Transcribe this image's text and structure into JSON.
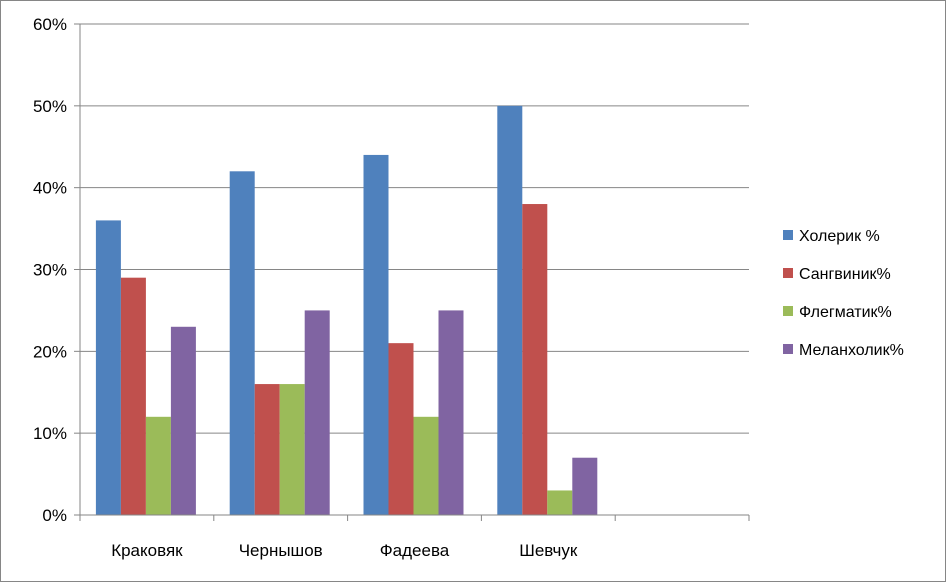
{
  "chart_data": {
    "type": "bar",
    "categories": [
      "Краковяк",
      "Чернышов",
      "Фадеева",
      "Шевчук",
      ""
    ],
    "series": [
      {
        "name": "Холерик %",
        "color": "#4F81BD",
        "values": [
          36,
          42,
          44,
          50,
          null
        ]
      },
      {
        "name": "Сангвиник%",
        "color": "#C0504D",
        "values": [
          29,
          16,
          21,
          38,
          null
        ]
      },
      {
        "name": "Флегматик%",
        "color": "#9BBB59",
        "values": [
          12,
          16,
          12,
          3,
          null
        ]
      },
      {
        "name": "Меланхолик%",
        "color": "#8064A2",
        "values": [
          23,
          25,
          25,
          7,
          null
        ]
      }
    ],
    "yticks": [
      "0%",
      "10%",
      "20%",
      "30%",
      "40%",
      "50%",
      "60%"
    ],
    "ylim": [
      0,
      60
    ],
    "title": "",
    "xlabel": "",
    "ylabel": "",
    "grid": true,
    "legend_position": "right"
  }
}
